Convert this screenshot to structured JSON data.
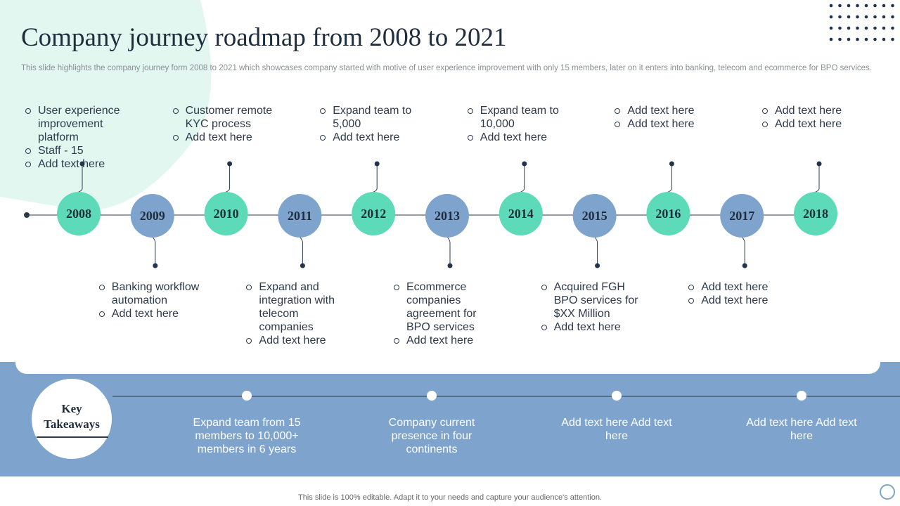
{
  "header": {
    "title": "Company journey roadmap from 2008 to 2021",
    "subtitle": "This slide highlights the company journey form 2008 to 2021 which showcases company started with motive of user experience improvement with only 15 members, later on it enters into banking, telecom and ecommerce for BPO services."
  },
  "milestones": [
    {
      "year": "2008",
      "bullets": [
        "User experience improvement platform",
        "Staff - 15",
        "Add text here"
      ]
    },
    {
      "year": "2009",
      "bullets": [
        "Banking workflow automation",
        "Add text here"
      ]
    },
    {
      "year": "2010",
      "bullets": [
        "Customer remote KYC process",
        "Add text here"
      ]
    },
    {
      "year": "2011",
      "bullets": [
        "Expand and integration with telecom companies",
        "Add text here"
      ]
    },
    {
      "year": "2012",
      "bullets": [
        "Expand team to 5,000",
        "Add text here"
      ]
    },
    {
      "year": "2013",
      "bullets": [
        "Ecommerce companies agreement for BPO services",
        "Add text here"
      ]
    },
    {
      "year": "2014",
      "bullets": [
        "Expand team to 10,000",
        "Add text here"
      ]
    },
    {
      "year": "2015",
      "bullets": [
        "Acquired FGH BPO services for $XX Million",
        "Add text here"
      ]
    },
    {
      "year": "2016",
      "bullets": [
        "Add text here",
        "Add text here"
      ]
    },
    {
      "year": "2017",
      "bullets": [
        "Add text here",
        "Add text here"
      ]
    },
    {
      "year": "2018",
      "bullets": [
        "Add text here",
        "Add text here"
      ]
    }
  ],
  "takeaways": {
    "heading": "Key Takeaways",
    "items": [
      "Expand team from 15 members to 10,000+ members in 6 years",
      "Company current presence in four continents",
      "Add text here Add text here",
      "Add text here Add text here"
    ]
  },
  "footer": "This slide is 100% editable. Adapt it to your needs and capture your audience's attention."
}
